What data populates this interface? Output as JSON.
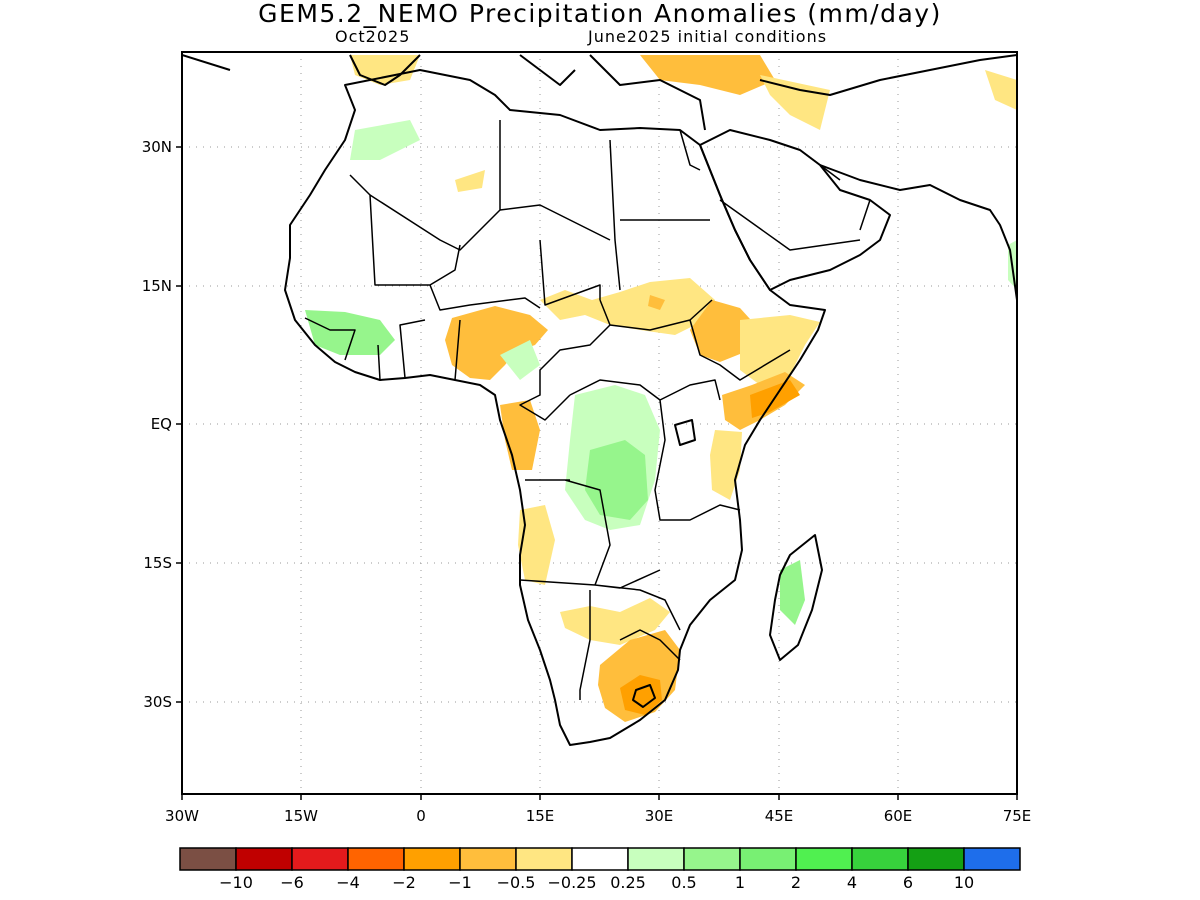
{
  "title": "GEM5.2_NEMO Precipitation Anomalies (mm/day)",
  "subtitle_left": "Oct2025",
  "subtitle_right": "June2025 initial conditions",
  "lat_ticks": [
    "30N",
    "15N",
    "EQ",
    "15S",
    "30S"
  ],
  "lon_ticks": [
    "30W",
    "15W",
    "0",
    "15E",
    "30E",
    "45E",
    "60E",
    "75E"
  ],
  "legend": {
    "labels": [
      "−10",
      "−6",
      "−4",
      "−2",
      "−1",
      "−0.5",
      "−0.25",
      "0.25",
      "0.5",
      "1",
      "2",
      "4",
      "6",
      "10"
    ],
    "colors": [
      "#7b4f44",
      "#c00000",
      "#e41a1c",
      "#ff6400",
      "#ffa000",
      "#ffbe3c",
      "#ffe682",
      "#ffffff",
      "#c8ffbe",
      "#96f58c",
      "#78f073",
      "#50f050",
      "#37d23c",
      "#14a014",
      "#1e6eeb"
    ]
  },
  "colors": {
    "land_outline": "#000000",
    "grid": "#9a9a9a"
  }
}
